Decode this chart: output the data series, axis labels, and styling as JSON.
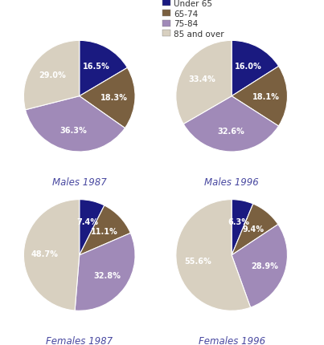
{
  "colors": [
    "#1a1a80",
    "#7a6040",
    "#a08ab8",
    "#d8d0c0"
  ],
  "legend_labels": [
    "Under 65",
    "65-74",
    "75-84",
    "85 and over"
  ],
  "charts": [
    {
      "title": "Males 1987",
      "values": [
        16.5,
        18.3,
        36.3,
        29.0
      ],
      "labels": [
        "16.5%",
        "18.3%",
        "36.3%",
        "29.0%"
      ]
    },
    {
      "title": "Males 1996",
      "values": [
        16.0,
        18.1,
        32.6,
        33.4
      ],
      "labels": [
        "16.0%",
        "18.1%",
        "32.6%",
        "33.4%"
      ]
    },
    {
      "title": "Females 1987",
      "values": [
        7.4,
        11.1,
        32.8,
        48.7
      ],
      "labels": [
        "7.4%",
        "11.1%",
        "32.8%",
        "48.7%"
      ]
    },
    {
      "title": "Females 1996",
      "values": [
        6.3,
        9.4,
        28.9,
        55.6
      ],
      "labels": [
        "6.3%",
        "9.4%",
        "28.9%",
        "55.6%"
      ]
    }
  ],
  "title_color": "#4848a0",
  "label_color": "#ffffff",
  "label_fontsize": 7.0,
  "title_fontsize": 8.5,
  "legend_fontsize": 7.5,
  "background_color": "#ffffff",
  "label_r": [
    0.62,
    0.62,
    0.62,
    0.62
  ]
}
